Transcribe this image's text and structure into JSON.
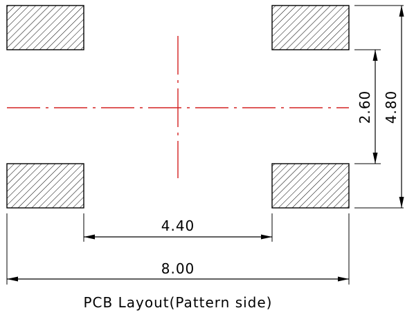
{
  "diagram": {
    "dimensions": {
      "pad_gap_width": "4.40",
      "overall_width": "8.00",
      "pad_gap_height": "2.60",
      "overall_height": "4.80"
    },
    "caption": "PCB Layout(Pattern side)",
    "colors": {
      "pad_outline": "#000000",
      "center_line": "#d32020",
      "dimension_line": "#000000"
    }
  }
}
